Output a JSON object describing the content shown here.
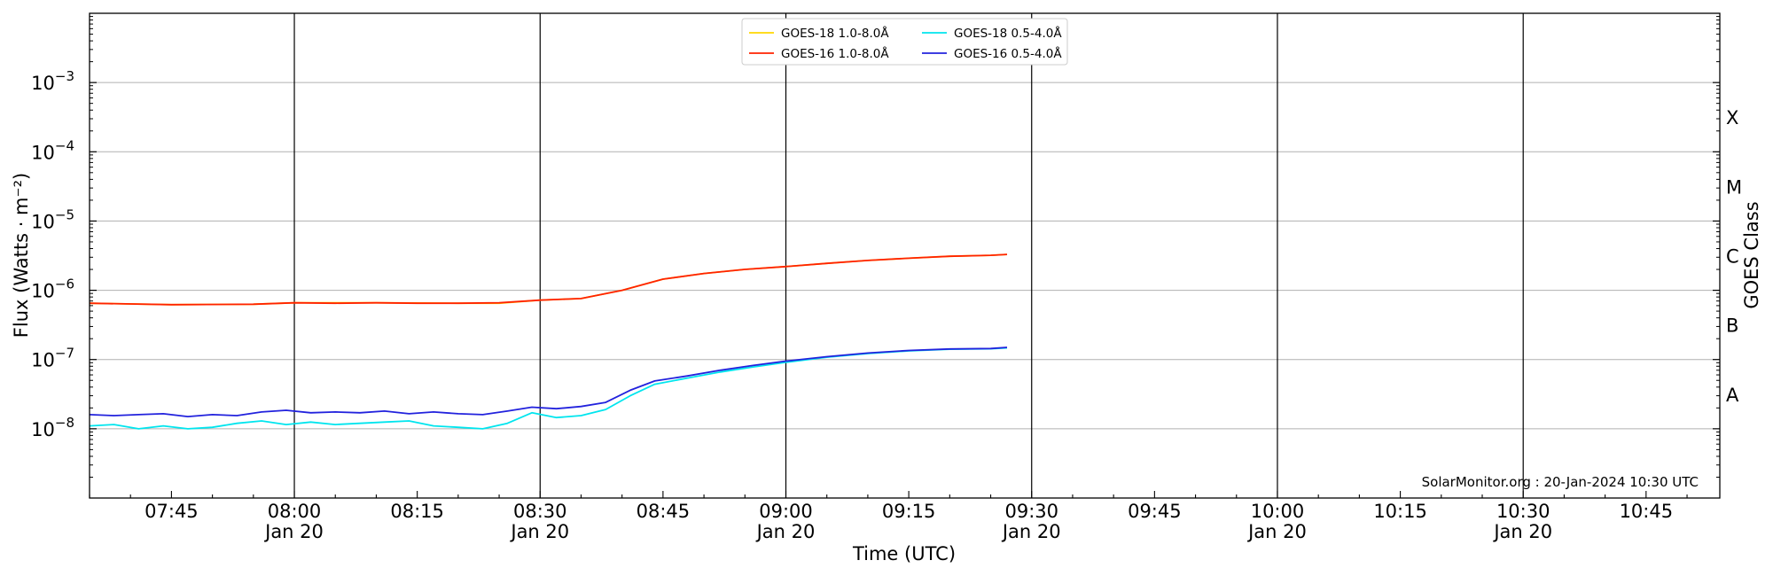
{
  "chart_data": {
    "type": "line",
    "xlabel": "Time (UTC)",
    "ylabel": "Flux (Watts · m⁻²)",
    "y2label": "GOES Class",
    "yscale": "log",
    "xlim": [
      "07:35",
      "10:54"
    ],
    "ylim": [
      1e-09,
      0.01
    ],
    "grid": "y",
    "legend_position": "top-center",
    "credit": "SolarMonitor.org : 20-Jan-2024 10:30 UTC",
    "x_ticks": [
      {
        "time": "07:45",
        "label": "07:45",
        "date": ""
      },
      {
        "time": "08:00",
        "label": "08:00",
        "date": "Jan 20"
      },
      {
        "time": "08:15",
        "label": "08:15",
        "date": ""
      },
      {
        "time": "08:30",
        "label": "08:30",
        "date": "Jan 20"
      },
      {
        "time": "08:45",
        "label": "08:45",
        "date": ""
      },
      {
        "time": "09:00",
        "label": "09:00",
        "date": "Jan 20"
      },
      {
        "time": "09:15",
        "label": "09:15",
        "date": ""
      },
      {
        "time": "09:30",
        "label": "09:30",
        "date": "Jan 20"
      },
      {
        "time": "09:45",
        "label": "09:45",
        "date": ""
      },
      {
        "time": "10:00",
        "label": "10:00",
        "date": "Jan 20"
      },
      {
        "time": "10:15",
        "label": "10:15",
        "date": ""
      },
      {
        "time": "10:30",
        "label": "10:30",
        "date": "Jan 20"
      },
      {
        "time": "10:45",
        "label": "10:45",
        "date": ""
      }
    ],
    "vlines": [
      "08:00",
      "08:30",
      "09:00",
      "09:30",
      "10:00",
      "10:30"
    ],
    "y_ticks": [
      {
        "exp": -8,
        "label": "10"
      },
      {
        "exp": -7,
        "label": "10"
      },
      {
        "exp": -6,
        "label": "10"
      },
      {
        "exp": -5,
        "label": "10"
      },
      {
        "exp": -4,
        "label": "10"
      },
      {
        "exp": -3,
        "label": "10"
      }
    ],
    "goes_classes": [
      {
        "label": "A",
        "exp": -7.5
      },
      {
        "label": "B",
        "exp": -6.5
      },
      {
        "label": "C",
        "exp": -5.5
      },
      {
        "label": "M",
        "exp": -4.5
      },
      {
        "label": "X",
        "exp": -3.5
      }
    ],
    "legend": [
      {
        "label": "GOES-18 1.0-8.0Å",
        "color": "#ffd700"
      },
      {
        "label": "GOES-18 0.5-4.0Å",
        "color": "#00e5ee"
      },
      {
        "label": "GOES-16 1.0-8.0Å",
        "color": "#ff2200"
      },
      {
        "label": "GOES-16 0.5-4.0Å",
        "color": "#2222dd"
      }
    ],
    "series": [
      {
        "name": "GOES-18 1.0-8.0Å",
        "color": "#ffd700",
        "x": [
          "07:35",
          "07:45",
          "07:55",
          "08:00",
          "08:10",
          "08:20",
          "08:25",
          "08:30",
          "08:35",
          "08:40",
          "08:45",
          "08:50",
          "08:55",
          "09:00",
          "09:05",
          "09:10",
          "09:15",
          "09:20",
          "09:25",
          "09:27"
        ],
        "y": [
          6.5e-07,
          6.2e-07,
          6.3e-07,
          6.6e-07,
          6.6e-07,
          6.5e-07,
          6.5e-07,
          7.2e-07,
          7.6e-07,
          1e-06,
          1.45e-06,
          1.75e-06,
          2e-06,
          2.2e-06,
          2.45e-06,
          2.7e-06,
          2.9e-06,
          3.1e-06,
          3.2e-06,
          3.3e-06
        ]
      },
      {
        "name": "GOES-16 1.0-8.0Å",
        "color": "#ff2200",
        "x": [
          "07:35",
          "07:45",
          "07:55",
          "08:00",
          "08:05",
          "08:10",
          "08:15",
          "08:20",
          "08:25",
          "08:30",
          "08:35",
          "08:40",
          "08:45",
          "08:50",
          "08:55",
          "09:00",
          "09:05",
          "09:10",
          "09:15",
          "09:20",
          "09:25",
          "09:27"
        ],
        "y": [
          6.5e-07,
          6.2e-07,
          6.3e-07,
          6.6e-07,
          6.5e-07,
          6.6e-07,
          6.5e-07,
          6.5e-07,
          6.6e-07,
          7.2e-07,
          7.6e-07,
          1e-06,
          1.45e-06,
          1.75e-06,
          2e-06,
          2.2e-06,
          2.45e-06,
          2.7e-06,
          2.9e-06,
          3.1e-06,
          3.2e-06,
          3.3e-06
        ]
      },
      {
        "name": "GOES-18 0.5-4.0Å",
        "color": "#00e5ee",
        "x": [
          "07:35",
          "07:38",
          "07:41",
          "07:44",
          "07:47",
          "07:50",
          "07:53",
          "07:56",
          "07:59",
          "08:02",
          "08:05",
          "08:08",
          "08:11",
          "08:14",
          "08:17",
          "08:20",
          "08:23",
          "08:26",
          "08:29",
          "08:32",
          "08:35",
          "08:38",
          "08:41",
          "08:44",
          "08:48",
          "08:52",
          "08:56",
          "09:00",
          "09:05",
          "09:10",
          "09:15",
          "09:20",
          "09:25",
          "09:27"
        ],
        "y": [
          1.1e-08,
          1.15e-08,
          1e-08,
          1.1e-08,
          1e-08,
          1.05e-08,
          1.2e-08,
          1.3e-08,
          1.15e-08,
          1.25e-08,
          1.15e-08,
          1.2e-08,
          1.25e-08,
          1.3e-08,
          1.1e-08,
          1.05e-08,
          1e-08,
          1.2e-08,
          1.7e-08,
          1.45e-08,
          1.55e-08,
          1.9e-08,
          3e-08,
          4.4e-08,
          5.4e-08,
          6.6e-08,
          7.8e-08,
          9.1e-08,
          1.08e-07,
          1.22e-07,
          1.33e-07,
          1.41e-07,
          1.43e-07,
          1.47e-07
        ]
      },
      {
        "name": "GOES-16 0.5-4.0Å",
        "color": "#2222dd",
        "x": [
          "07:35",
          "07:38",
          "07:41",
          "07:44",
          "07:47",
          "07:50",
          "07:53",
          "07:56",
          "07:59",
          "08:02",
          "08:05",
          "08:08",
          "08:11",
          "08:14",
          "08:17",
          "08:20",
          "08:23",
          "08:26",
          "08:29",
          "08:32",
          "08:35",
          "08:38",
          "08:41",
          "08:44",
          "08:48",
          "08:52",
          "08:56",
          "09:00",
          "09:05",
          "09:10",
          "09:15",
          "09:20",
          "09:25",
          "09:27"
        ],
        "y": [
          1.6e-08,
          1.55e-08,
          1.6e-08,
          1.65e-08,
          1.5e-08,
          1.6e-08,
          1.55e-08,
          1.75e-08,
          1.85e-08,
          1.7e-08,
          1.75e-08,
          1.7e-08,
          1.8e-08,
          1.65e-08,
          1.75e-08,
          1.65e-08,
          1.6e-08,
          1.8e-08,
          2.05e-08,
          1.95e-08,
          2.1e-08,
          2.4e-08,
          3.6e-08,
          4.9e-08,
          5.8e-08,
          7e-08,
          8.2e-08,
          9.5e-08,
          1.1e-07,
          1.24e-07,
          1.35e-07,
          1.42e-07,
          1.44e-07,
          1.5e-07
        ]
      }
    ]
  }
}
